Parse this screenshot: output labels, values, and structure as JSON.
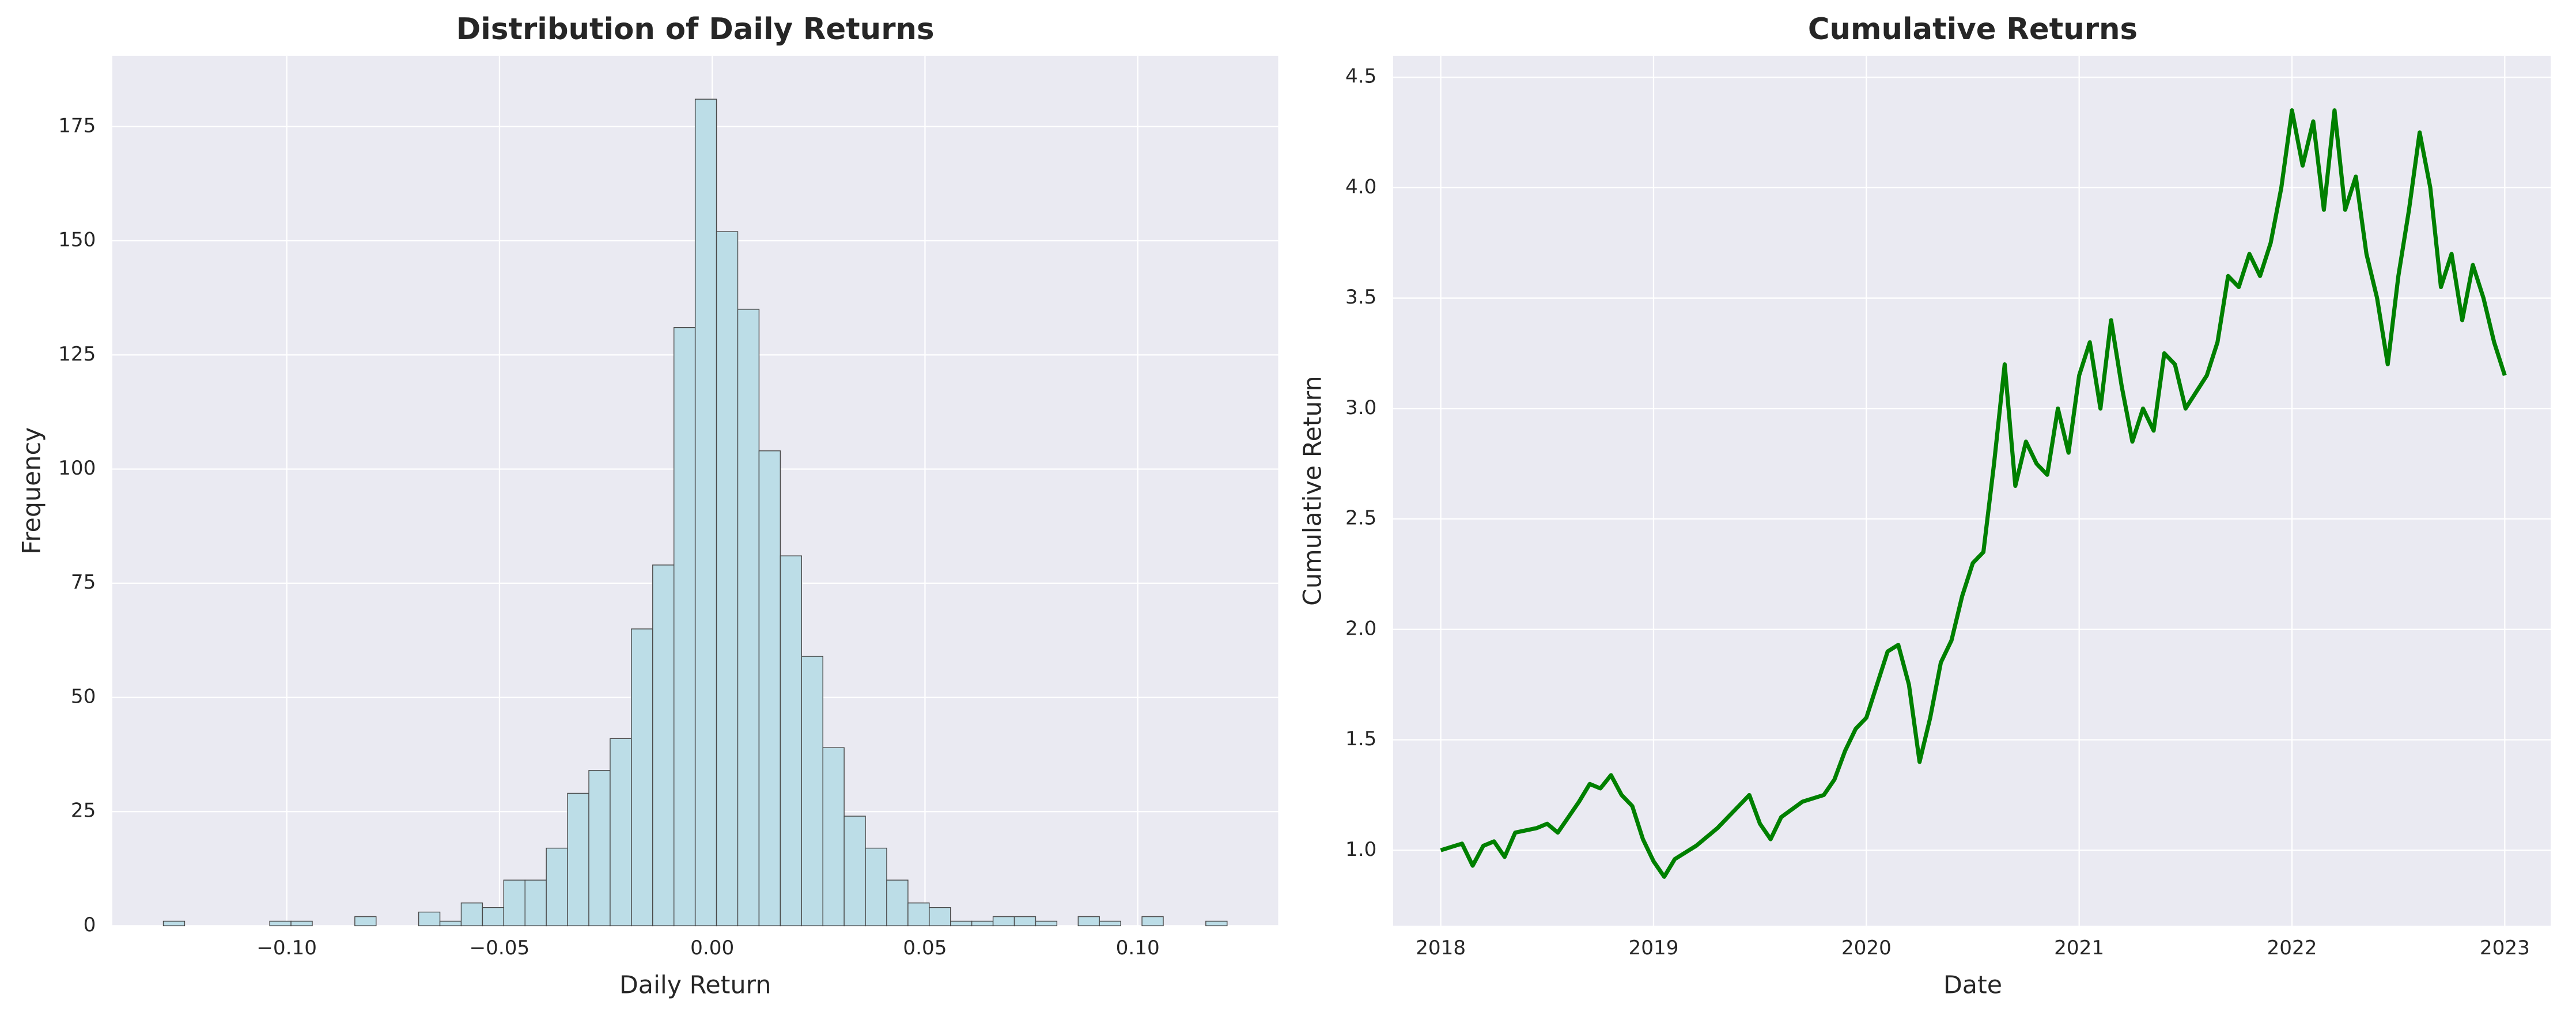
{
  "chart_data": [
    {
      "type": "histogram",
      "title": "Distribution of Daily Returns",
      "xlabel": "Daily Return",
      "ylabel": "Frequency",
      "bins": [
        -0.129,
        -0.124,
        -0.119,
        -0.114,
        -0.109,
        -0.104,
        -0.099,
        -0.094,
        -0.089,
        -0.084,
        -0.079,
        -0.074,
        -0.069,
        -0.064,
        -0.059,
        -0.054,
        -0.049,
        -0.044,
        -0.039,
        -0.034,
        -0.029,
        -0.024,
        -0.019,
        -0.014,
        -0.009,
        -0.004,
        0.001,
        0.006,
        0.011,
        0.016,
        0.021,
        0.026,
        0.031,
        0.036,
        0.041,
        0.046,
        0.051,
        0.056,
        0.061,
        0.066,
        0.071,
        0.076,
        0.081,
        0.086,
        0.091,
        0.096,
        0.101,
        0.106,
        0.111,
        0.116,
        0.121
      ],
      "counts": [
        1,
        0,
        0,
        0,
        0,
        1,
        1,
        0,
        0,
        2,
        0,
        0,
        3,
        1,
        5,
        4,
        10,
        10,
        17,
        29,
        34,
        41,
        65,
        79,
        131,
        181,
        152,
        135,
        104,
        81,
        59,
        39,
        24,
        17,
        10,
        5,
        4,
        1,
        1,
        2,
        2,
        1,
        0,
        2,
        1,
        0,
        2,
        0,
        0,
        1
      ],
      "color": "#bcdde7",
      "edgecolor": "#4a4a4a",
      "xlim": [
        -0.141,
        0.133
      ],
      "xticks": [
        {
          "value": -0.1,
          "label": "−0.10"
        },
        {
          "value": -0.05,
          "label": "−0.05"
        },
        {
          "value": 0,
          "label": "0.00"
        },
        {
          "value": 0.05,
          "label": "0.05"
        },
        {
          "value": 0.1,
          "label": "0.10"
        }
      ],
      "ylim": [
        0,
        190.5
      ],
      "yticks": [
        0,
        25,
        50,
        75,
        100,
        125,
        150,
        175
      ],
      "grid": true
    },
    {
      "type": "line",
      "title": "Cumulative Returns",
      "xlabel": "Date",
      "ylabel": "Cumulative Return",
      "x": [
        2018.0,
        2018.1,
        2018.15,
        2018.2,
        2018.25,
        2018.3,
        2018.35,
        2018.45,
        2018.5,
        2018.55,
        2018.6,
        2018.65,
        2018.7,
        2018.75,
        2018.8,
        2018.85,
        2018.9,
        2018.95,
        2019.0,
        2019.05,
        2019.1,
        2019.2,
        2019.3,
        2019.4,
        2019.45,
        2019.5,
        2019.55,
        2019.6,
        2019.7,
        2019.8,
        2019.85,
        2019.9,
        2019.95,
        2020.0,
        2020.05,
        2020.1,
        2020.15,
        2020.2,
        2020.25,
        2020.3,
        2020.35,
        2020.4,
        2020.45,
        2020.5,
        2020.55,
        2020.6,
        2020.65,
        2020.7,
        2020.75,
        2020.8,
        2020.85,
        2020.9,
        2020.95,
        2021.0,
        2021.05,
        2021.1,
        2021.15,
        2021.2,
        2021.25,
        2021.3,
        2021.35,
        2021.4,
        2021.45,
        2021.5,
        2021.6,
        2021.65,
        2021.7,
        2021.75,
        2021.8,
        2021.85,
        2021.9,
        2021.95,
        2022.0,
        2022.05,
        2022.1,
        2022.15,
        2022.2,
        2022.25,
        2022.3,
        2022.35,
        2022.4,
        2022.45,
        2022.5,
        2022.55,
        2022.6,
        2022.65,
        2022.7,
        2022.75,
        2022.8,
        2022.85,
        2022.9,
        2022.95,
        2023.0
      ],
      "values": [
        1.0,
        1.03,
        0.93,
        1.02,
        1.04,
        0.97,
        1.08,
        1.1,
        1.12,
        1.08,
        1.15,
        1.22,
        1.3,
        1.28,
        1.34,
        1.25,
        1.2,
        1.05,
        0.95,
        0.88,
        0.96,
        1.02,
        1.1,
        1.2,
        1.25,
        1.12,
        1.05,
        1.15,
        1.22,
        1.25,
        1.32,
        1.45,
        1.55,
        1.6,
        1.75,
        1.9,
        1.93,
        1.75,
        1.4,
        1.6,
        1.85,
        1.95,
        2.15,
        2.3,
        2.35,
        2.75,
        3.2,
        2.65,
        2.85,
        2.75,
        2.7,
        3.0,
        2.8,
        3.15,
        3.3,
        3.0,
        3.4,
        3.1,
        2.85,
        3.0,
        2.9,
        3.25,
        3.2,
        3.0,
        3.15,
        3.3,
        3.6,
        3.55,
        3.7,
        3.6,
        3.75,
        4.0,
        4.35,
        4.1,
        4.3,
        3.9,
        4.35,
        3.9,
        4.05,
        3.7,
        3.5,
        3.2,
        3.6,
        3.9,
        4.25,
        4.0,
        3.55,
        3.7,
        3.4,
        3.65,
        3.5,
        3.3,
        3.15
      ],
      "color": "#008000",
      "xlim": [
        2017.776,
        2023.216
      ],
      "xticks": [
        2018,
        2019,
        2020,
        2021,
        2022,
        2023
      ],
      "ylim": [
        0.658,
        4.597
      ],
      "yticks": [
        {
          "value": 1,
          "label": "1.0"
        },
        1.5,
        {
          "value": 2,
          "label": "2.0"
        },
        2.5,
        {
          "value": 3,
          "label": "3.0"
        },
        3.5,
        {
          "value": 4,
          "label": "4.0"
        },
        4.5
      ],
      "grid": true
    }
  ]
}
